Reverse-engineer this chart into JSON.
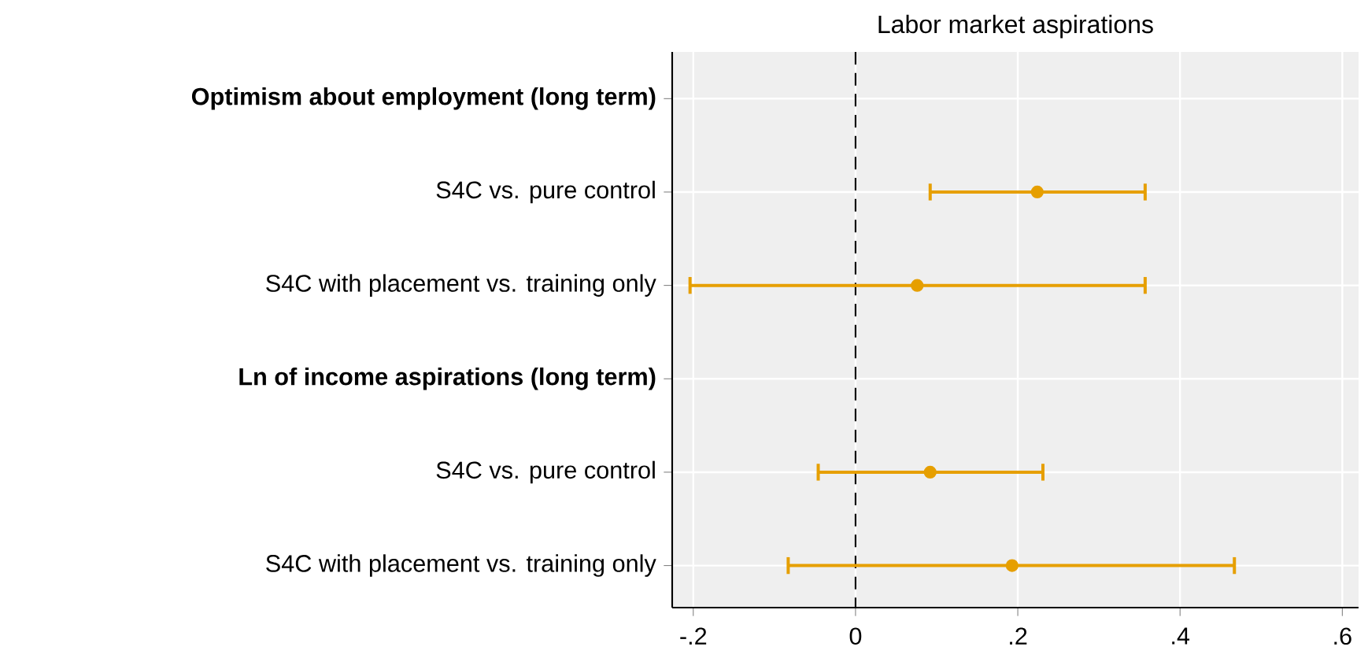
{
  "chart_data": {
    "type": "scatter",
    "orientation": "horizontal",
    "title": "Labor market aspirations",
    "categories": [
      "Optimism about employment (long term)",
      "S4C vs. pure control",
      "S4C with placement vs. training only",
      "Ln of income aspirations (long term)",
      "S4C vs. pure control",
      "S4C with placement vs. training only"
    ],
    "values": [
      null,
      0.224,
      0.076,
      null,
      0.092,
      0.193
    ],
    "errors": [
      null,
      [
        0.092,
        0.357
      ],
      [
        -0.204,
        0.357
      ],
      null,
      [
        -0.046,
        0.231
      ],
      [
        -0.083,
        0.467
      ]
    ],
    "color": "#e69f00",
    "marker": "circle",
    "grid": true,
    "xlim": [
      -0.226,
      0.62
    ],
    "xticks": [
      {
        "value": -0.2,
        "label": "-.2"
      },
      0,
      {
        "value": 0.2,
        "label": ".2"
      },
      {
        "value": 0.4,
        "label": ".4"
      },
      {
        "value": 0.6,
        "label": ".6"
      }
    ],
    "ref_lines": [
      {
        "axis": "x",
        "value": 0,
        "color": "#000000",
        "line_style": "dashed"
      }
    ]
  }
}
